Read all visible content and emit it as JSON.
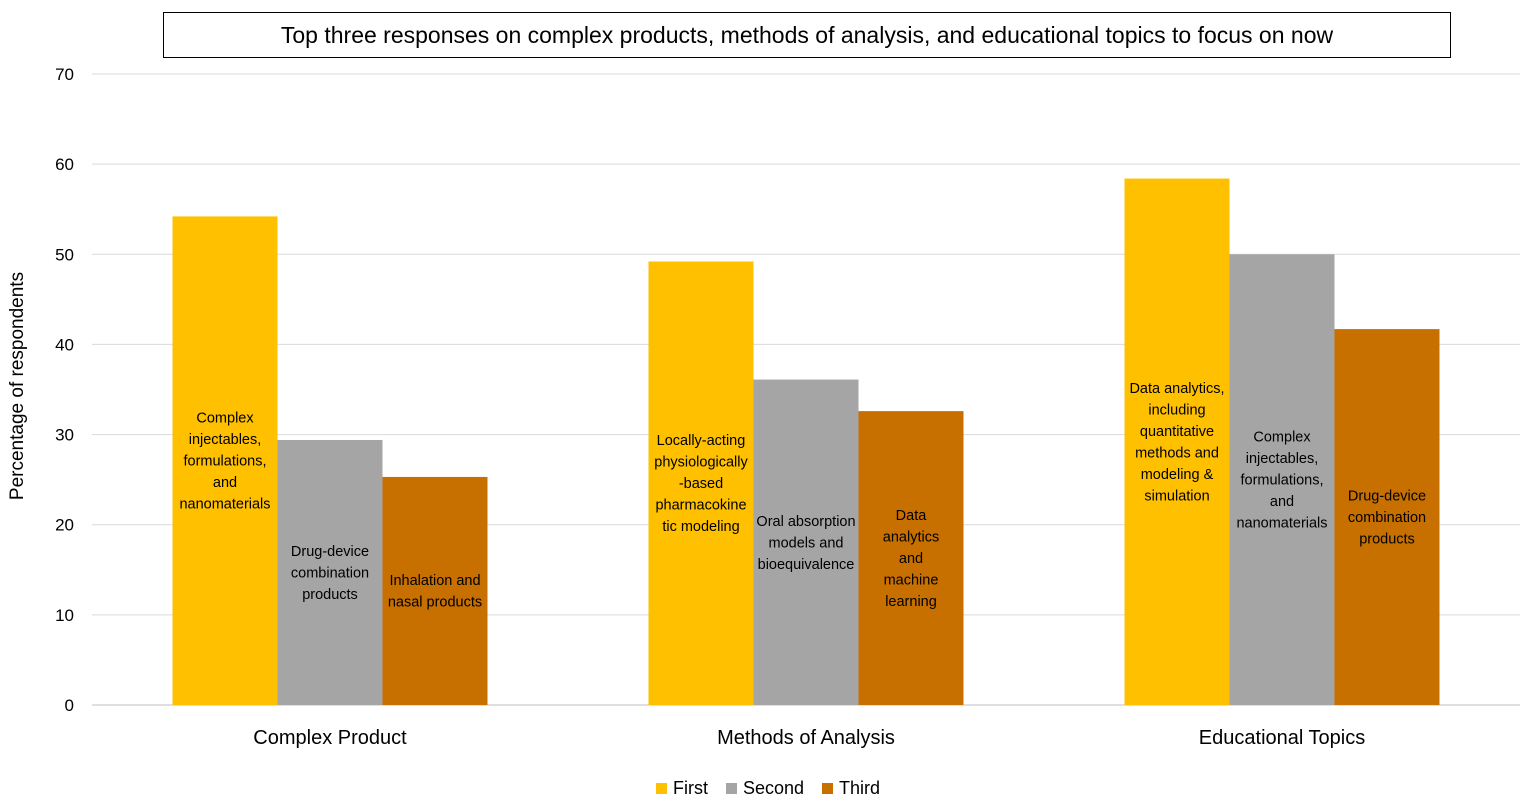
{
  "chart_data": {
    "type": "bar",
    "title": "Top three responses on complex products, methods of analysis, and educational topics to focus on now",
    "xlabel": "",
    "ylabel": "Percentage of respondents",
    "ylim": [
      0,
      70
    ],
    "yticks": [
      0,
      10,
      20,
      30,
      40,
      50,
      60,
      70
    ],
    "grid": true,
    "legend_position": "bottom",
    "categories": [
      "Complex Product",
      "Methods of Analysis",
      "Educational Topics"
    ],
    "series": [
      {
        "name": "First",
        "color": "#FFC000",
        "values": [
          54.2,
          49.2,
          58.4
        ],
        "labels": [
          [
            "Complex",
            "injectables,",
            "formulations,",
            "and",
            "nanomaterials"
          ],
          [
            "Locally-acting",
            "physiologically",
            "-based",
            "pharmacokine",
            "tic modeling"
          ],
          [
            "Data analytics,",
            "including",
            "quantitative",
            "methods and",
            "modeling &",
            "simulation"
          ]
        ]
      },
      {
        "name": "Second",
        "color": "#A5A5A5",
        "values": [
          29.4,
          36.1,
          50.0
        ],
        "labels": [
          [
            "Drug-device",
            "combination",
            "products"
          ],
          [
            "Oral absorption",
            "models and",
            "bioequivalence"
          ],
          [
            "Complex",
            "injectables,",
            "formulations,",
            "and",
            "nanomaterials"
          ]
        ]
      },
      {
        "name": "Third",
        "color": "#C77000",
        "values": [
          25.3,
          32.6,
          41.7
        ],
        "labels": [
          [
            "Inhalation and",
            "nasal products"
          ],
          [
            "Data",
            "analytics",
            "and",
            "machine",
            "learning"
          ],
          [
            "Drug-device",
            "combination",
            "products"
          ]
        ]
      }
    ]
  }
}
